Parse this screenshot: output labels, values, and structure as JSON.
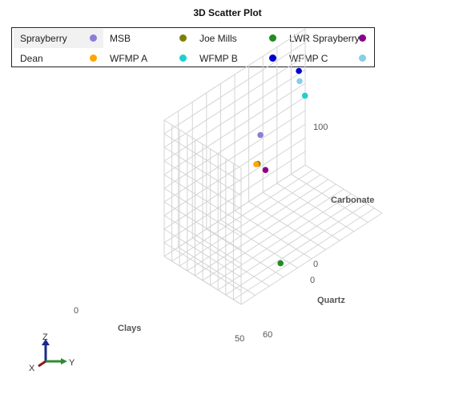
{
  "title": "3D Scatter Plot",
  "legend": [
    {
      "label": "Sprayberry",
      "color": "#8a7fd6"
    },
    {
      "label": "MSB",
      "color": "#808000"
    },
    {
      "label": "Joe Mills",
      "color": "#228b22"
    },
    {
      "label": "LWR Sprayberry",
      "color": "#8b008b"
    },
    {
      "label": "Dean",
      "color": "#ffa500"
    },
    {
      "label": "WFMP A",
      "color": "#1fcfcf"
    },
    {
      "label": "WFMP B",
      "color": "#0000cd"
    },
    {
      "label": "WFMP C",
      "color": "#87ceeb"
    }
  ],
  "chart_data": {
    "type": "scatter",
    "title": "3D Scatter Plot",
    "axes": {
      "x": {
        "label": "Clays",
        "range": [
          0,
          50
        ],
        "ticks": [
          "0",
          "50"
        ]
      },
      "y": {
        "label": "Quartz",
        "range": [
          0,
          60
        ],
        "ticks": [
          "0",
          "60"
        ]
      },
      "z": {
        "label": "Carbonate",
        "range": [
          0,
          100
        ],
        "ticks": [
          "0",
          "100"
        ]
      }
    },
    "grid": true,
    "legend_position": "top",
    "series": [
      {
        "name": "WFMP B",
        "color": "#0000cd",
        "points": [
          {
            "x": 2,
            "y": 56,
            "z": 75
          }
        ]
      },
      {
        "name": "WFMP C",
        "color": "#87ceeb",
        "points": [
          {
            "x": 4,
            "y": 55,
            "z": 70
          }
        ]
      },
      {
        "name": "WFMP A",
        "color": "#1fcfcf",
        "points": [
          {
            "x": 9,
            "y": 54,
            "z": 64
          }
        ]
      },
      {
        "name": "Sprayberry",
        "color": "#8a7fd6",
        "points": [
          {
            "x": 6,
            "y": 37,
            "z": 52
          }
        ]
      },
      {
        "name": "MSB",
        "color": "#808000",
        "points": [
          {
            "x": 15,
            "y": 30,
            "z": 45
          }
        ]
      },
      {
        "name": "Dean",
        "color": "#ffa500",
        "points": [
          {
            "x": 14,
            "y": 30,
            "z": 44
          }
        ]
      },
      {
        "name": "LWR Sprayberry",
        "color": "#8b008b",
        "points": [
          {
            "x": 20,
            "y": 30,
            "z": 44
          }
        ]
      },
      {
        "name": "Joe Mills",
        "color": "#228b22",
        "points": [
          {
            "x": 42,
            "y": 22,
            "z": 0
          }
        ]
      }
    ]
  },
  "triad": {
    "z": "Z",
    "y": "Y",
    "x": "X"
  }
}
